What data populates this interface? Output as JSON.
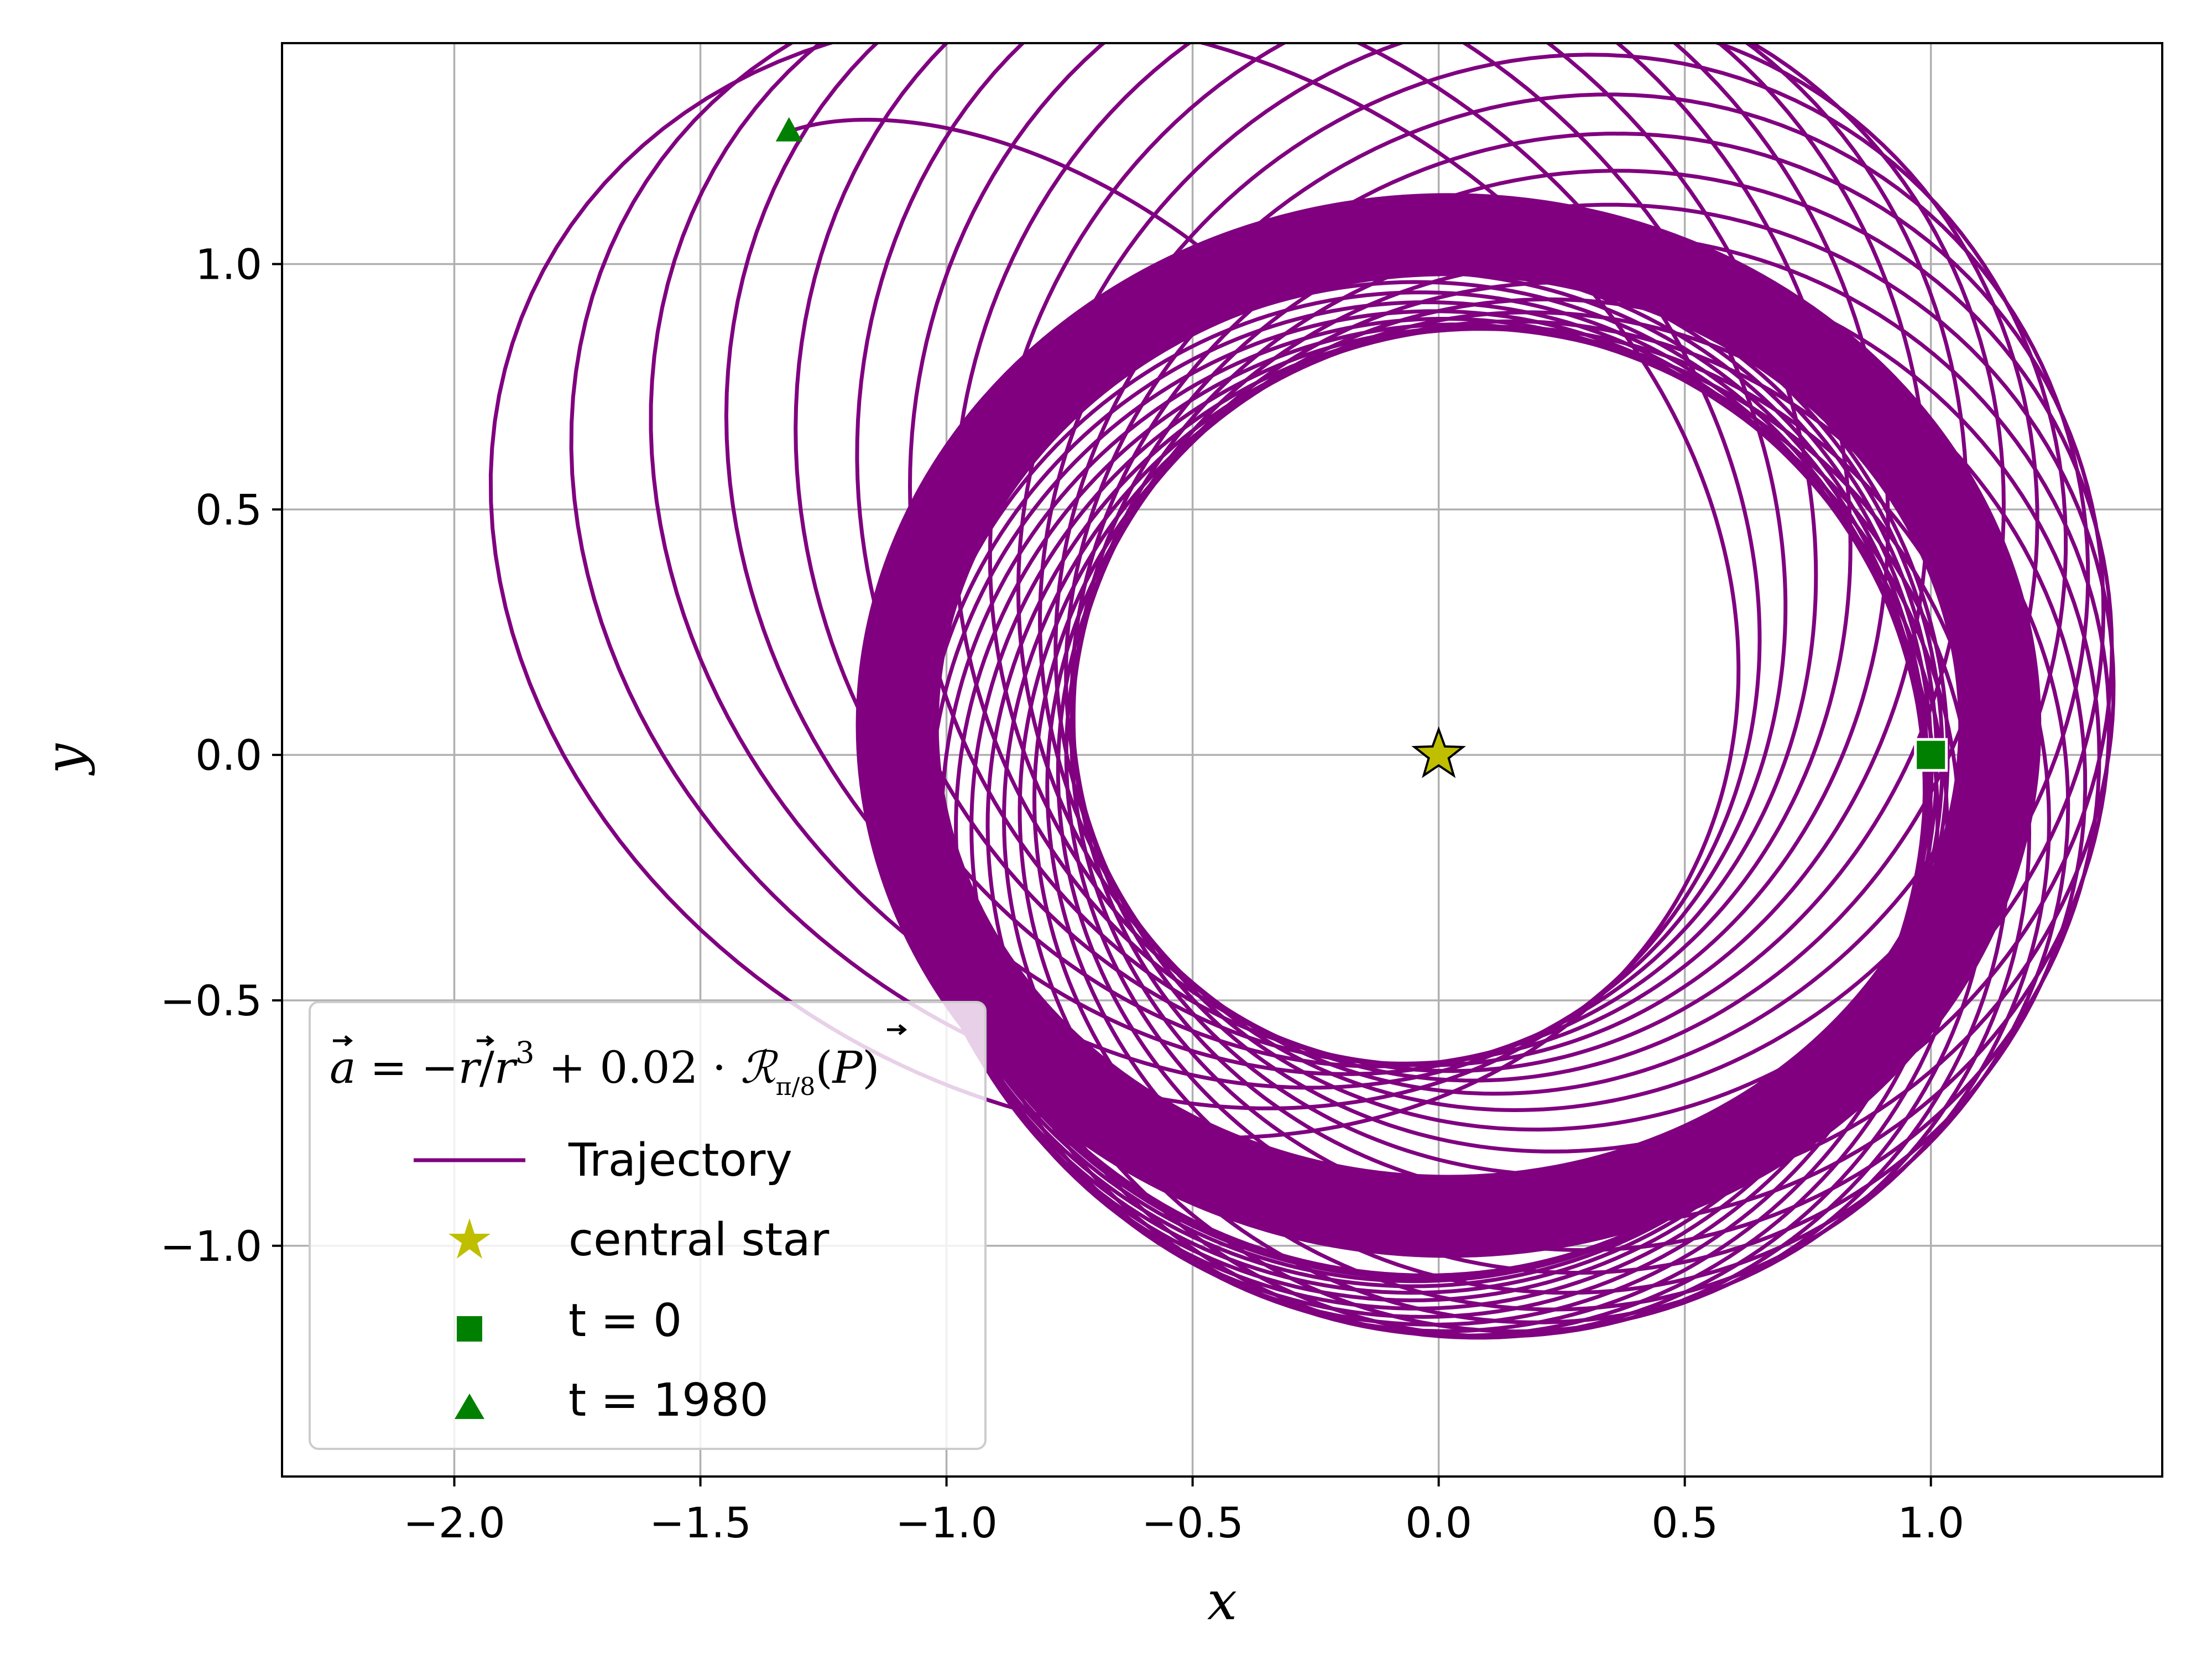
{
  "chart_data": {
    "type": "line",
    "title": "",
    "xlabel": "x",
    "ylabel": "y",
    "xlim": [
      -2.35,
      1.47
    ],
    "ylim": [
      -1.47,
      1.45
    ],
    "grid": true,
    "xticks": [
      -2.0,
      -1.5,
      -1.0,
      -0.5,
      0.0,
      0.5,
      1.0
    ],
    "yticks": [
      -1.0,
      -0.5,
      0.0,
      0.5,
      1.0
    ],
    "xtick_labels": [
      "−2.0",
      "−1.5",
      "−1.0",
      "−0.5",
      "0.0",
      "0.5",
      "1.0"
    ],
    "ytick_labels": [
      "−1.0",
      "−0.5",
      "0.0",
      "0.5",
      "1.0"
    ],
    "legend": {
      "placement": "lower left",
      "title": "a = −r/r³ + 0.02 · Rπ/8(P)",
      "entries": [
        "Trajectory",
        "central star",
        "t = 0",
        "t = 1980"
      ]
    },
    "series": [
      {
        "name": "Trajectory",
        "kind": "line",
        "color": "#800080",
        "start": [
          1.0,
          0.0
        ],
        "end": [
          -1.32,
          1.27
        ],
        "inner_ring": {
          "center": [
            0.0,
            0.05
          ],
          "radius_min": 0.95,
          "radius_max": 1.15
        },
        "outer_extent": {
          "x": [
            -1.65,
            1.18
          ],
          "y": [
            -1.35,
            1.32
          ]
        }
      },
      {
        "name": "central star",
        "kind": "marker",
        "marker": "star",
        "color": "#bfbf00",
        "x": [
          0.0
        ],
        "y": [
          0.0
        ]
      },
      {
        "name": "t = 0",
        "kind": "marker",
        "marker": "square",
        "color": "#008000",
        "x": [
          1.0
        ],
        "y": [
          0.0
        ]
      },
      {
        "name": "t = 1980",
        "kind": "marker",
        "marker": "triangle",
        "color": "#008000",
        "x": [
          -1.32
        ],
        "y": [
          1.27
        ]
      }
    ]
  }
}
